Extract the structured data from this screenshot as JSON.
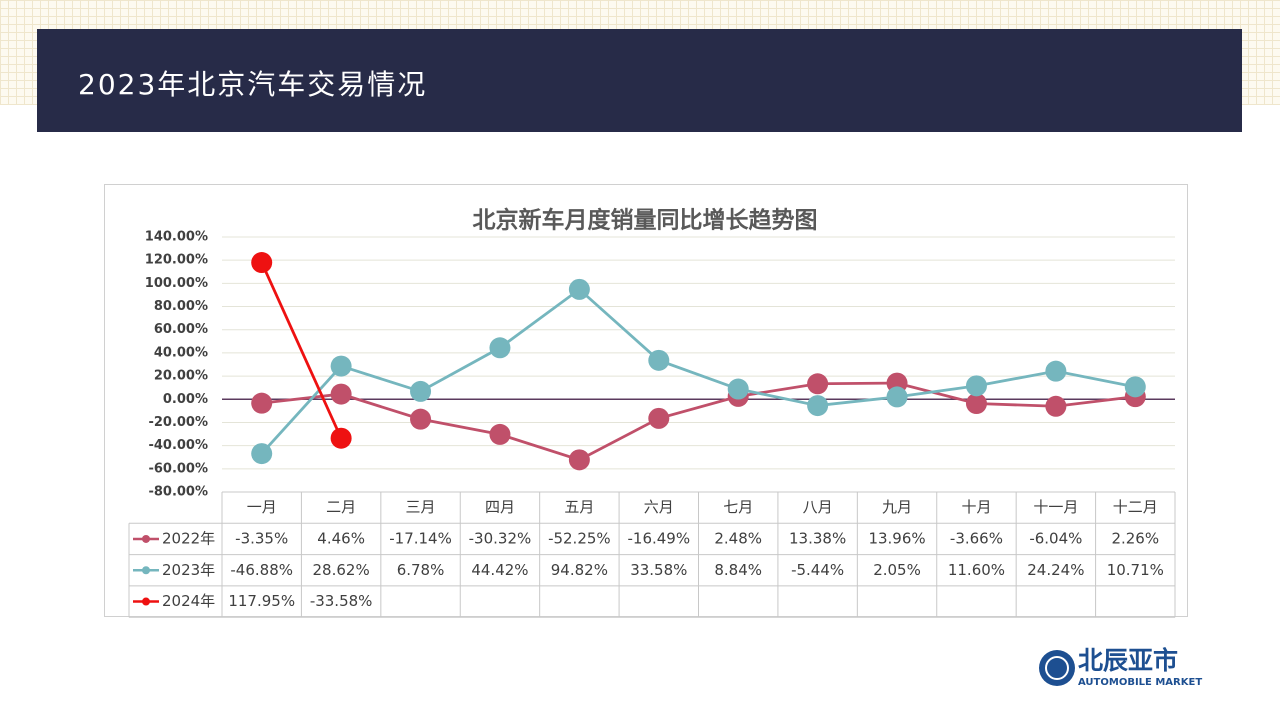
{
  "header": {
    "title": "2023年北京汽车交易情况"
  },
  "logo": {
    "name": "北辰亚市",
    "subtitle": "AUTOMOBILE MARKET"
  },
  "chart_data": {
    "type": "line",
    "title": "北京新车月度销量同比增长趋势图",
    "categories": [
      "一月",
      "二月",
      "三月",
      "四月",
      "五月",
      "六月",
      "七月",
      "八月",
      "九月",
      "十月",
      "十一月",
      "十二月"
    ],
    "series": [
      {
        "name": "2022年",
        "color": "#c0506a",
        "values": [
          -3.35,
          4.46,
          -17.14,
          -30.32,
          -52.25,
          -16.49,
          2.48,
          13.38,
          13.96,
          -3.66,
          -6.04,
          2.26
        ],
        "value_labels": [
          "-3.35%",
          "4.46%",
          "-17.14%",
          "-30.32%",
          "-52.25%",
          "-16.49%",
          "2.48%",
          "13.38%",
          "13.96%",
          "-3.66%",
          "-6.04%",
          "2.26%"
        ]
      },
      {
        "name": "2023年",
        "color": "#75b6be",
        "values": [
          -46.88,
          28.62,
          6.78,
          44.42,
          94.82,
          33.58,
          8.84,
          -5.44,
          2.05,
          11.6,
          24.24,
          10.71
        ],
        "value_labels": [
          "-46.88%",
          "28.62%",
          "6.78%",
          "44.42%",
          "94.82%",
          "33.58%",
          "8.84%",
          "-5.44%",
          "2.05%",
          "11.60%",
          "24.24%",
          "10.71%"
        ]
      },
      {
        "name": "2024年",
        "color": "#ee1111",
        "values": [
          117.95,
          -33.58,
          null,
          null,
          null,
          null,
          null,
          null,
          null,
          null,
          null,
          null
        ],
        "value_labels": [
          "117.95%",
          "-33.58%",
          null,
          null,
          null,
          null,
          null,
          null,
          null,
          null,
          null,
          null
        ]
      }
    ],
    "ylim": [
      -80,
      140
    ],
    "yticks": [
      {
        "value": -80,
        "label": "-80.00%"
      },
      {
        "value": -60,
        "label": "-60.00%"
      },
      {
        "value": -40,
        "label": "-40.00%"
      },
      {
        "value": -20,
        "label": "-20.00%"
      },
      {
        "value": 0,
        "label": "0.00%"
      },
      {
        "value": 20,
        "label": "20.00%"
      },
      {
        "value": 40,
        "label": "40.00%"
      },
      {
        "value": 60,
        "label": "60.00%"
      },
      {
        "value": 80,
        "label": "80.00%"
      },
      {
        "value": 100,
        "label": "100.00%"
      },
      {
        "value": 120,
        "label": "120.00%"
      },
      {
        "value": 140,
        "label": "140.00%"
      }
    ],
    "grid": true
  }
}
